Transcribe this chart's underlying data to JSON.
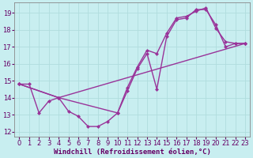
{
  "xlabel": "Windchill (Refroidissement éolien,°C)",
  "bg_color": "#c8eef0",
  "grid_color": "#b0dddd",
  "line_color": "#993399",
  "xlim": [
    -0.5,
    23.5
  ],
  "ylim": [
    11.7,
    19.6
  ],
  "xticks": [
    0,
    1,
    2,
    3,
    4,
    5,
    6,
    7,
    8,
    9,
    10,
    11,
    12,
    13,
    14,
    15,
    16,
    17,
    18,
    19,
    20,
    21,
    22,
    23
  ],
  "yticks": [
    12,
    13,
    14,
    15,
    16,
    17,
    18,
    19
  ],
  "line1_x": [
    0,
    1,
    2,
    3,
    4,
    5,
    6,
    7,
    8,
    9,
    10,
    11,
    12,
    13,
    14,
    15,
    16,
    17,
    18,
    19,
    20,
    21,
    22,
    23
  ],
  "line1_y": [
    14.8,
    14.8,
    13.1,
    13.8,
    14.0,
    13.2,
    12.9,
    12.3,
    12.3,
    12.6,
    13.1,
    14.4,
    15.7,
    16.6,
    14.5,
    17.6,
    18.6,
    18.7,
    19.2,
    19.2,
    18.3,
    17.0,
    17.2,
    17.2
  ],
  "line2_x": [
    0,
    4,
    10,
    11,
    12,
    13,
    14,
    15,
    16,
    17,
    18,
    19,
    20,
    21,
    22,
    23
  ],
  "line2_y": [
    14.8,
    14.0,
    13.1,
    14.6,
    15.8,
    16.8,
    16.6,
    17.8,
    18.7,
    18.8,
    19.1,
    19.3,
    18.1,
    17.3,
    17.2,
    17.2
  ],
  "line3_x": [
    0,
    4,
    23
  ],
  "line3_y": [
    14.8,
    14.0,
    17.2
  ],
  "markersize": 2.5,
  "linewidth": 1.0,
  "xlabel_fontsize": 6.5,
  "tick_fontsize": 6.0
}
